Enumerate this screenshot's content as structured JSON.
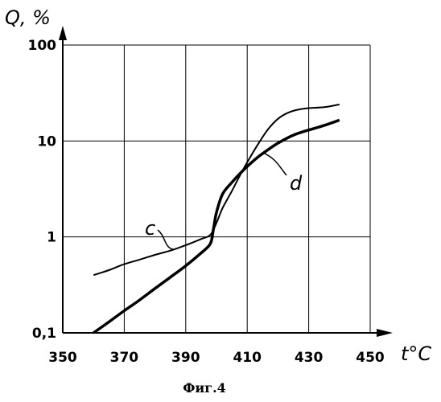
{
  "chart_data": {
    "type": "line",
    "ylabel": "Q, %",
    "xlabel": "t°C",
    "caption": "Фиг.4",
    "xlim": [
      350,
      450
    ],
    "ylim": [
      0.1,
      100
    ],
    "y_scale": "log",
    "grid": true,
    "x_ticks": [
      350,
      370,
      390,
      410,
      430,
      450
    ],
    "x_tick_labels": [
      "350",
      "370",
      "390",
      "410",
      "430",
      "450"
    ],
    "y_ticks": [
      0.1,
      1,
      10,
      100
    ],
    "y_tick_labels": [
      "0,1",
      "1",
      "10",
      "100"
    ],
    "series": [
      {
        "name": "c",
        "x": [
          360,
          365,
          370,
          375,
          380,
          385,
          390,
          395,
          398,
          400,
          402,
          405,
          408,
          411,
          414,
          417,
          420,
          423,
          426,
          430,
          435,
          440
        ],
        "y": [
          0.4,
          0.45,
          0.52,
          0.58,
          0.65,
          0.72,
          0.82,
          0.95,
          1.05,
          1.4,
          2.0,
          3.0,
          4.6,
          6.8,
          9.8,
          13.5,
          17,
          19.5,
          21,
          22,
          22.5,
          24
        ]
      },
      {
        "name": "d",
        "x": [
          360,
          365,
          370,
          375,
          380,
          385,
          390,
          395,
          398,
          399,
          400,
          402,
          405,
          408,
          411,
          414,
          417,
          420,
          425,
          430,
          435,
          440
        ],
        "y": [
          0.1,
          0.13,
          0.17,
          0.22,
          0.29,
          0.38,
          0.5,
          0.68,
          0.85,
          1.2,
          1.8,
          2.8,
          3.7,
          4.7,
          5.8,
          7,
          8.2,
          9.5,
          11.5,
          13,
          14.5,
          16.5
        ]
      }
    ]
  }
}
